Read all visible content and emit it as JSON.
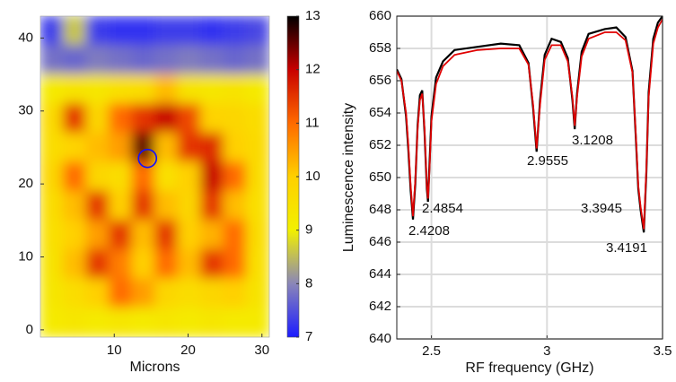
{
  "chart_data": [
    {
      "type": "heatmap",
      "xlabel": "Microns",
      "x": [
        1.55,
        4.65,
        7.75,
        10.85,
        13.95,
        17.05,
        20.15,
        23.25,
        26.35,
        29.45
      ],
      "y": [
        41,
        37,
        33,
        29,
        25,
        21,
        17,
        13,
        9,
        5,
        1
      ],
      "values": [
        [
          7.3,
          8.6,
          7.3,
          7.2,
          7.2,
          7.3,
          7.3,
          7.2,
          7.3,
          7.4
        ],
        [
          7.8,
          7.7,
          7.9,
          7.8,
          7.7,
          7.8,
          7.9,
          7.8,
          7.7,
          7.8
        ],
        [
          9.2,
          9.4,
          9.3,
          9.5,
          9.6,
          10.2,
          9.4,
          9.3,
          9.4,
          9.2
        ],
        [
          9.7,
          11.5,
          9.8,
          11.0,
          11.5,
          12.0,
          11.3,
          9.9,
          9.8,
          9.6
        ],
        [
          9.6,
          9.9,
          10.2,
          10.5,
          12.5,
          10.2,
          11.5,
          11.6,
          10.0,
          9.7
        ],
        [
          9.8,
          11.0,
          9.8,
          9.6,
          11.0,
          9.5,
          10.0,
          12.0,
          11.0,
          9.6
        ],
        [
          9.6,
          10.2,
          11.5,
          10.0,
          11.5,
          10.2,
          9.8,
          11.5,
          10.2,
          9.5
        ],
        [
          9.5,
          10.0,
          10.5,
          11.5,
          10.2,
          11.5,
          10.0,
          10.3,
          11.0,
          9.6
        ],
        [
          9.4,
          10.2,
          11.5,
          10.8,
          10.0,
          11.0,
          10.2,
          11.5,
          11.0,
          9.5
        ],
        [
          9.3,
          9.6,
          10.0,
          11.0,
          10.5,
          9.8,
          9.6,
          9.8,
          10.0,
          9.4
        ],
        [
          9.2,
          9.3,
          9.2,
          9.3,
          9.2,
          9.3,
          9.2,
          9.3,
          9.2,
          9.2
        ]
      ],
      "xlim": [
        0,
        31
      ],
      "ylim": [
        -1,
        43
      ],
      "xticks": [
        10,
        20,
        30
      ],
      "yticks": [
        0,
        10,
        20,
        30,
        40
      ],
      "clim": [
        7,
        13
      ],
      "cticks": [
        7,
        8,
        9,
        10,
        11,
        12,
        13
      ],
      "colormap": [
        "#1c1cff",
        "#8a86b8",
        "#f2f000",
        "#ffd000",
        "#ff6a00",
        "#c80000",
        "#000000"
      ],
      "marker": {
        "x": 14.5,
        "y": 23.5,
        "color": "#1010ff"
      }
    },
    {
      "type": "line",
      "xlabel": "RF frequency (GHz)",
      "ylabel": "Luminescence intensity",
      "xlim": [
        2.35,
        3.5
      ],
      "ylim": [
        640,
        660
      ],
      "xticks": [
        2.5,
        3,
        3.5
      ],
      "yticks": [
        640,
        642,
        644,
        646,
        648,
        650,
        652,
        654,
        656,
        658,
        660
      ],
      "grid": true,
      "x": [
        2.35,
        2.37,
        2.39,
        2.4,
        2.41,
        2.42,
        2.43,
        2.44,
        2.45,
        2.46,
        2.47,
        2.48,
        2.485,
        2.49,
        2.5,
        2.52,
        2.55,
        2.6,
        2.7,
        2.8,
        2.88,
        2.92,
        2.94,
        2.955,
        2.97,
        2.99,
        3.02,
        3.06,
        3.09,
        3.11,
        3.12,
        3.13,
        3.15,
        3.18,
        3.25,
        3.3,
        3.34,
        3.37,
        3.385,
        3.395,
        3.405,
        3.419,
        3.43,
        3.44,
        3.46,
        3.48,
        3.5
      ],
      "series": [
        {
          "color": "#000000",
          "values": [
            656.7,
            656.1,
            653.8,
            651.7,
            649.2,
            647.4,
            649.6,
            653.2,
            655.1,
            655.4,
            652.8,
            649.3,
            648.5,
            650.3,
            653.8,
            656.2,
            657.2,
            657.9,
            658.1,
            658.3,
            658.2,
            657.1,
            654.3,
            651.6,
            654.8,
            657.6,
            658.6,
            658.4,
            657.4,
            654.8,
            653.0,
            655.2,
            657.8,
            658.9,
            659.2,
            659.3,
            658.7,
            656.6,
            652.3,
            649.3,
            648.0,
            646.6,
            650.3,
            655.3,
            658.6,
            659.6,
            660.0
          ]
        },
        {
          "color": "#e00000",
          "values": [
            656.6,
            656.0,
            654.0,
            652.0,
            649.5,
            647.6,
            649.8,
            653.0,
            654.8,
            655.2,
            653.0,
            649.5,
            648.7,
            650.0,
            653.5,
            655.8,
            656.9,
            657.6,
            657.9,
            658.0,
            658.0,
            657.0,
            654.5,
            651.8,
            654.5,
            657.3,
            658.2,
            658.2,
            657.2,
            655.0,
            653.2,
            655.0,
            657.5,
            658.6,
            659.0,
            659.0,
            658.5,
            656.5,
            652.5,
            649.5,
            648.2,
            646.8,
            650.5,
            655.0,
            658.3,
            659.3,
            659.8
          ]
        }
      ],
      "annotations": [
        {
          "text": "2.4208"
        },
        {
          "text": "2.4854"
        },
        {
          "text": "2.9555"
        },
        {
          "text": "3.1208"
        },
        {
          "text": "3.3945"
        },
        {
          "text": "3.4191"
        }
      ]
    }
  ]
}
